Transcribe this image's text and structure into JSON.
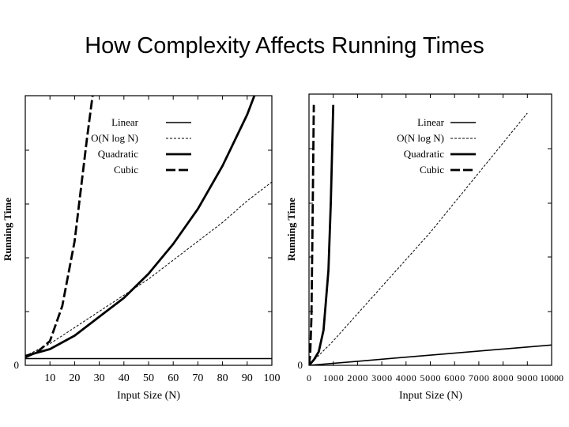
{
  "slide": {
    "title": "How Complexity Affects Running Times"
  },
  "chart_data": [
    {
      "type": "line",
      "title": "",
      "xlabel": "Input Size (N)",
      "ylabel": "Running Time",
      "xlim": [
        0,
        100
      ],
      "ylim": [
        0,
        100
      ],
      "xticks": [
        10,
        20,
        30,
        40,
        50,
        60,
        70,
        80,
        90,
        100
      ],
      "xtick_labels": [
        "10",
        "20",
        "30",
        "40",
        "50",
        "60",
        "70",
        "80",
        "90",
        "100"
      ],
      "ytick_labels": [
        "0"
      ],
      "legend_position": "top-left",
      "series": [
        {
          "name": "Linear",
          "legend_label": "Linear",
          "style": "thin-solid",
          "x": [
            0,
            10,
            20,
            30,
            40,
            50,
            60,
            70,
            80,
            90,
            100
          ],
          "y": [
            2.5,
            2.5,
            2.5,
            2.5,
            2.5,
            2.5,
            2.5,
            2.5,
            2.5,
            2.5,
            2.5
          ]
        },
        {
          "name": "O(N log N)",
          "legend_label": "O(N log N)",
          "style": "thin-dashed",
          "x": [
            0,
            10,
            20,
            30,
            40,
            50,
            60,
            70,
            80,
            90,
            100
          ],
          "y": [
            3.5,
            8,
            14,
            20,
            26,
            32,
            39,
            46,
            53,
            61,
            68
          ]
        },
        {
          "name": "Quadratic",
          "legend_label": "Quadratic",
          "style": "thick-solid",
          "x": [
            0,
            10,
            20,
            30,
            40,
            50,
            60,
            70,
            80,
            90,
            95
          ],
          "y": [
            3.5,
            6,
            11,
            18,
            25,
            34,
            45,
            58,
            74,
            93,
            105
          ]
        },
        {
          "name": "Cubic",
          "legend_label": "Cubic",
          "style": "thick-dashed",
          "x": [
            0,
            5,
            10,
            15,
            20,
            25,
            28
          ],
          "y": [
            3,
            5,
            9,
            22,
            46,
            84,
            105
          ]
        }
      ]
    },
    {
      "type": "line",
      "title": "",
      "xlabel": "Input Size (N)",
      "ylabel": "Running Time",
      "xlim": [
        0,
        10000
      ],
      "ylim": [
        0,
        100
      ],
      "xticks": [
        0,
        1000,
        2000,
        3000,
        4000,
        5000,
        6000,
        7000,
        8000,
        9000,
        10000
      ],
      "xtick_labels": [
        "0",
        "1000",
        "2000",
        "3000",
        "4000",
        "5000",
        "6000",
        "7000",
        "8000",
        "9000",
        "10000"
      ],
      "ytick_labels": [
        "0"
      ],
      "legend_position": "top-right",
      "series": [
        {
          "name": "Linear",
          "legend_label": "Linear",
          "style": "thin-solid",
          "x": [
            0,
            2000,
            4000,
            6000,
            8000,
            10000
          ],
          "y": [
            0,
            1.5,
            3,
            4.5,
            6,
            7.5
          ]
        },
        {
          "name": "O(N log N)",
          "legend_label": "O(N log N)",
          "style": "thin-dashed",
          "x": [
            0,
            1000,
            2000,
            3000,
            4000,
            5000,
            6000,
            7000,
            8000,
            9000
          ],
          "y": [
            0,
            9,
            19,
            29,
            39,
            49,
            60,
            71,
            82,
            93
          ]
        },
        {
          "name": "Quadratic",
          "legend_label": "Quadratic",
          "style": "thick-solid",
          "x": [
            0,
            200,
            400,
            600,
            800,
            900,
            1000
          ],
          "y": [
            0,
            2,
            5,
            13,
            35,
            60,
            96
          ]
        },
        {
          "name": "Cubic",
          "legend_label": "Cubic",
          "style": "thick-dashed",
          "x": [
            0,
            50,
            100,
            150,
            200
          ],
          "y": [
            0,
            4,
            18,
            55,
            96
          ]
        }
      ]
    }
  ]
}
